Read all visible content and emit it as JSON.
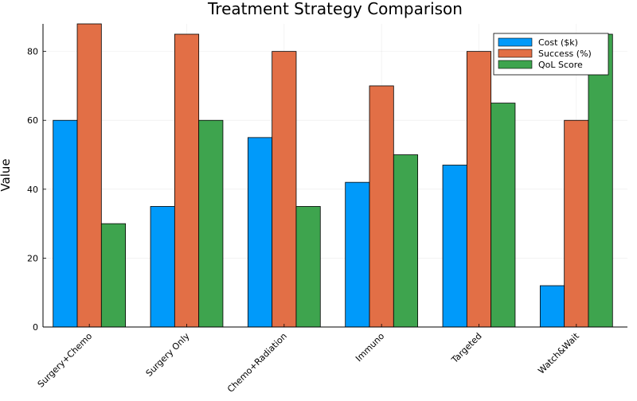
{
  "chart_data": {
    "type": "bar",
    "title": "Treatment Strategy Comparison",
    "xlabel": "",
    "ylabel": "Value",
    "ylim": [
      0,
      88
    ],
    "yticks": [
      0,
      20,
      40,
      60,
      80
    ],
    "grid": true,
    "legend_position": "top-right",
    "categories": [
      "Surgery+Chemo",
      "Surgery Only",
      "Chemo+Radiation",
      "Immuno",
      "Targeted",
      "Watch&Wait"
    ],
    "series": [
      {
        "name": "Cost ($k)",
        "color": "#009AFA",
        "values": [
          60,
          35,
          55,
          42,
          47,
          12
        ]
      },
      {
        "name": "Success (%)",
        "color": "#E26F46",
        "values": [
          88,
          85,
          80,
          70,
          80,
          60
        ]
      },
      {
        "name": "QoL Score",
        "color": "#3EA44E",
        "values": [
          30,
          60,
          35,
          50,
          65,
          85
        ]
      }
    ]
  }
}
